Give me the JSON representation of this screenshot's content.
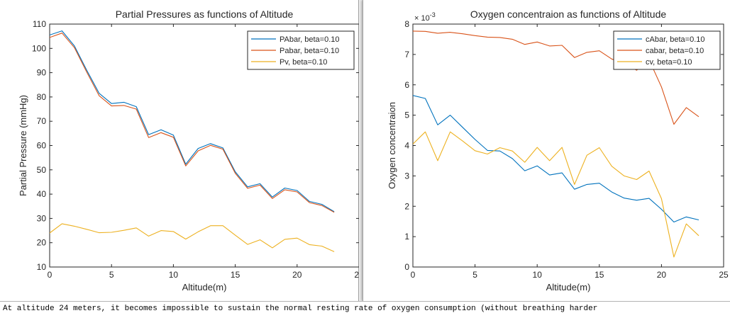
{
  "chart_data": [
    {
      "type": "line",
      "title": "Partial Pressures as functions of Altitude",
      "xlabel": "Altitude(m)",
      "ylabel": "Partial Pressure (mmHg)",
      "xlim": [
        0,
        25
      ],
      "ylim": [
        10,
        110
      ],
      "xticks": [
        0,
        5,
        10,
        15,
        20,
        25
      ],
      "yticks": [
        10,
        20,
        30,
        40,
        50,
        60,
        70,
        80,
        90,
        100,
        110
      ],
      "legend_position": "top-right",
      "x": [
        0,
        1,
        2,
        3,
        4,
        5,
        6,
        7,
        8,
        9,
        10,
        11,
        12,
        13,
        14,
        15,
        16,
        17,
        18,
        19,
        20,
        21,
        22,
        23
      ],
      "series": [
        {
          "name": "PAbar, beta=0.10",
          "color": "#0072bd",
          "values": [
            105.5,
            107.2,
            101,
            91,
            81.5,
            77.3,
            77.8,
            76,
            64.5,
            66.5,
            64.3,
            52.3,
            58.8,
            60.8,
            59,
            49.2,
            43,
            44.3,
            38.8,
            42.5,
            41.5,
            37,
            35.8,
            32.8
          ]
        },
        {
          "name": "Pabar, beta=0.10",
          "color": "#d95319",
          "values": [
            104.5,
            106.3,
            100.3,
            90.2,
            80.5,
            76.3,
            76.5,
            75,
            63.3,
            65.3,
            63.4,
            51.6,
            57.8,
            60.1,
            58.5,
            48.6,
            42.4,
            43.7,
            38.2,
            41.8,
            40.9,
            36.5,
            35.3,
            32.5
          ]
        },
        {
          "name": "Pv, beta=0.10",
          "color": "#edb120",
          "values": [
            24,
            27.8,
            26.8,
            25.5,
            24.1,
            24.3,
            25.1,
            26.1,
            22.7,
            25,
            24.6,
            21.5,
            24.5,
            27,
            27,
            23.1,
            19.3,
            21.2,
            17.9,
            21.4,
            21.9,
            19.2,
            18.6,
            16.3
          ]
        }
      ]
    },
    {
      "type": "line",
      "title": "Oxygen concentraion as functions of Altitude",
      "xlabel": "Altitude(m)",
      "ylabel": "Oxygen concentraion",
      "exponent_label": "× 10",
      "exponent": "-3",
      "xlim": [
        0,
        25
      ],
      "ylim": [
        0,
        8
      ],
      "xticks": [
        0,
        5,
        10,
        15,
        20,
        25
      ],
      "yticks": [
        0,
        1,
        2,
        3,
        4,
        5,
        6,
        7,
        8
      ],
      "legend_position": "top-right",
      "x": [
        0,
        1,
        2,
        3,
        4,
        5,
        6,
        7,
        8,
        9,
        10,
        11,
        12,
        13,
        14,
        15,
        16,
        17,
        18,
        19,
        20,
        21,
        22,
        23
      ],
      "series": [
        {
          "name": "cAbar, beta=0.10",
          "color": "#0072bd",
          "values": [
            5.65,
            5.55,
            4.68,
            5.0,
            4.6,
            4.2,
            3.84,
            3.82,
            3.57,
            3.17,
            3.33,
            3.03,
            3.1,
            2.56,
            2.72,
            2.76,
            2.47,
            2.27,
            2.2,
            2.26,
            1.9,
            1.48,
            1.65,
            1.55
          ]
        },
        {
          "name": "cabar, beta=0.10",
          "color": "#d95319",
          "values": [
            7.77,
            7.76,
            7.7,
            7.73,
            7.68,
            7.62,
            7.57,
            7.56,
            7.5,
            7.33,
            7.41,
            7.28,
            7.3,
            6.9,
            7.07,
            7.12,
            6.85,
            6.7,
            6.48,
            6.83,
            5.93,
            4.7,
            5.25,
            4.95
          ]
        },
        {
          "name": "cv, beta=0.10",
          "color": "#edb120",
          "values": [
            4.05,
            4.45,
            3.5,
            4.45,
            4.15,
            3.83,
            3.72,
            3.93,
            3.82,
            3.45,
            3.94,
            3.5,
            3.94,
            2.72,
            3.68,
            3.93,
            3.32,
            3.0,
            2.88,
            3.16,
            2.25,
            0.33,
            1.42,
            1.03
          ]
        }
      ]
    }
  ],
  "command_window": {
    "text": "At altitude 24 meters, it becomes impossible to sustain the normal resting rate of oxygen consumption (without breathing harder"
  }
}
